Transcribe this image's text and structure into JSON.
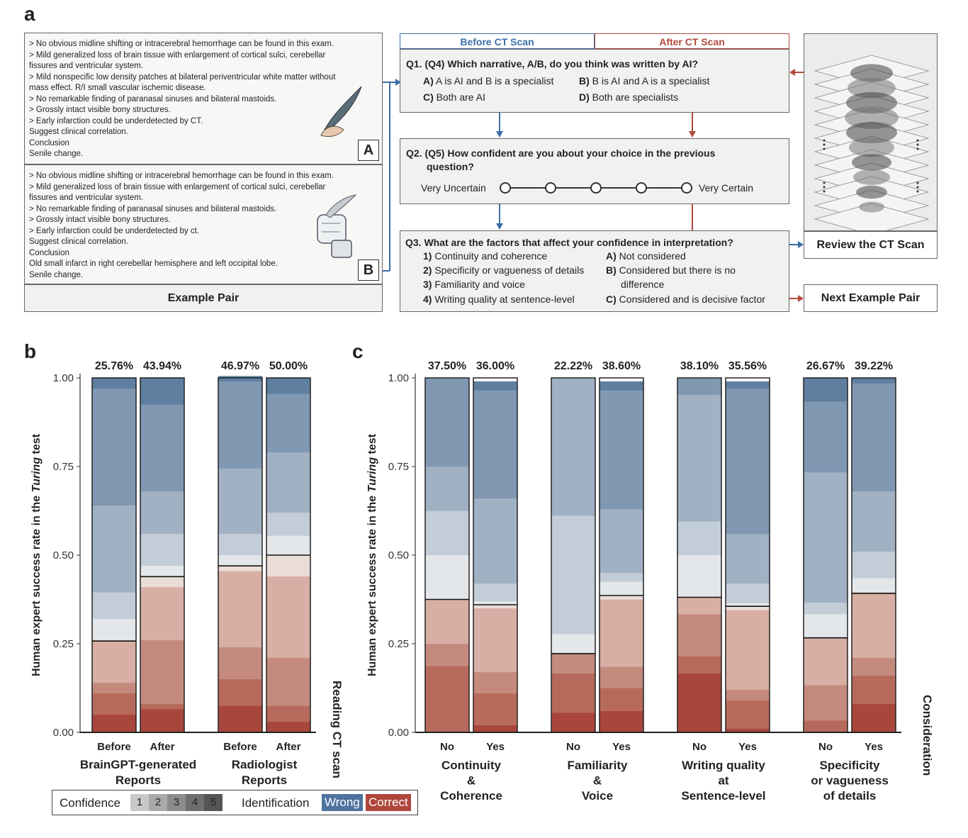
{
  "panel_a": {
    "label": "a",
    "report_a": {
      "lines": [
        "> No obvious midline shifting or intracerebral hemorrhage can be found in this exam.",
        "> Mild generalized loss of brain tissue with enlargement of cortical sulci, cerebellar",
        "fissures and ventricular system.",
        "> Mild nonspecific low density patches at bilateral periventricular white matter without",
        "mass effect. R/I small vascular ischemic disease.",
        "> No remarkable finding of paranasal sinuses and bilateral mastoids.",
        "> Grossly intact visible bony structures.",
        "> Early infarction could be underdetected by CT.",
        "Suggest clinical correlation.",
        "Conclusion",
        "Senile change."
      ],
      "tag": "A"
    },
    "report_b": {
      "lines": [
        "> No obvious midline shifting or intracerebral hemorrhage can be found in this exam.",
        "> Mild generalized loss of brain tissue with enlargement of cortical sulci, cerebellar",
        "fissures and ventricular system.",
        "> No remarkable finding of paranasal sinuses and bilateral mastoids.",
        "> Grossly intact visible bony structures.",
        "> Early infarction could be underdetected by ct.",
        "Suggest clinical correlation.",
        "Conclusion",
        "Old small infarct in right cerebellar hemisphere and left occipital lobe.",
        "Senile change."
      ],
      "tag": "B"
    },
    "example_pair_label": "Example Pair",
    "tab_before": "Before CT Scan",
    "tab_after": "After CT Scan",
    "q1": {
      "title": "Q1. (Q4) Which narrative, A/B, do you think was written by AI?",
      "opt_a_key": "A)",
      "opt_a": "A is AI and B is a specialist",
      "opt_b_key": "B)",
      "opt_b": "B is AI and A is a specialist",
      "opt_c_key": "C)",
      "opt_c": "Both are AI",
      "opt_d_key": "D)",
      "opt_d": "Both are specialists"
    },
    "q2": {
      "title_1": "Q2. (Q5) How confident are you about your choice in the previous",
      "title_2": "question?",
      "left": "Very Uncertain",
      "right": "Very Certain"
    },
    "q3": {
      "title": "Q3. What are the factors that affect your confidence in interpretation?",
      "f1_key": "1)",
      "f1": "Continuity and coherence",
      "f2_key": "2)",
      "f2": "Specificity or vagueness of details",
      "f3_key": "3)",
      "f3": "Familiarity and voice",
      "f4_key": "4)",
      "f4": "Writing quality at sentence-level",
      "ca_key": "A)",
      "ca": "Not considered",
      "cb_key": "B)",
      "cb": "Considered but there is no",
      "cb2": "difference",
      "cc_key": "C)",
      "cc": "Considered and is decisive factor"
    },
    "review_label": "Review the CT Scan",
    "next_label": "Next Example Pair"
  },
  "colors": {
    "wrong": "#4e72a0",
    "correct": "#b0453b",
    "before_tab": "#3c6ea8",
    "after_tab": "#b24a3d"
  },
  "panel_b": {
    "label": "b",
    "side_label": "Reading CT scan"
  },
  "panel_c": {
    "label": "c",
    "side_label": "Consideration"
  },
  "legend": {
    "confidence_label": "Confidence",
    "levels": [
      "1",
      "2",
      "3",
      "4",
      "5"
    ],
    "identification_label": "Identification",
    "wrong_label": "Wrong",
    "correct_label": "Correct"
  },
  "chart_data": [
    {
      "type": "stacked-bar",
      "panel": "b",
      "title": "",
      "ylabel": "Human expert success rate in the Turing test",
      "ylim": [
        0,
        1
      ],
      "yticks": [
        "0.00",
        "0.25",
        "0.50",
        "0.75",
        "1.00"
      ],
      "stack_order": "Correct conf 5 (bottom) ... Correct conf 1, Wrong conf 1 ... Wrong conf 5 (top)",
      "groups": [
        {
          "name": "BrainGPT-generated Reports",
          "bars": [
            {
              "label": "Before",
              "success_label": "25.76%",
              "success": 0.2576,
              "correct": [
                0.0,
                0.12,
                0.03,
                0.06,
                0.05
              ],
              "wrong": [
                0.06,
                0.075,
                0.245,
                0.33,
                0.03
              ]
            },
            {
              "label": "After",
              "success_label": "43.94%",
              "success": 0.4394,
              "correct": [
                0.03,
                0.15,
                0.18,
                0.015,
                0.065
              ],
              "wrong": [
                0.03,
                0.09,
                0.12,
                0.245,
                0.075
              ]
            }
          ]
        },
        {
          "name": "Radiologist Reports",
          "bars": [
            {
              "label": "Before",
              "success_label": "46.97%",
              "success": 0.4697,
              "correct": [
                0.015,
                0.215,
                0.09,
                0.075,
                0.075
              ],
              "wrong": [
                0.03,
                0.06,
                0.185,
                0.245,
                0.015
              ]
            },
            {
              "label": "After",
              "success_label": "50.00%",
              "success": 0.5,
              "correct": [
                0.06,
                0.23,
                0.135,
                0.045,
                0.03
              ],
              "wrong": [
                0.055,
                0.065,
                0.17,
                0.165,
                0.045
              ]
            }
          ]
        }
      ]
    },
    {
      "type": "stacked-bar",
      "panel": "c",
      "title": "",
      "ylabel": "Human expert success rate in the Turing test",
      "ylim": [
        0,
        1
      ],
      "yticks": [
        "0.00",
        "0.25",
        "0.50",
        "0.75",
        "1.00"
      ],
      "groups": [
        {
          "name": "Continuity & Coherence",
          "bars": [
            {
              "label": "No",
              "success_label": "37.50%",
              "success": 0.375,
              "correct": [
                0.0,
                0.125,
                0.0625,
                0.1875,
                0.0
              ],
              "wrong": [
                0.125,
                0.125,
                0.125,
                0.25,
                0.0
              ]
            },
            {
              "label": "Yes",
              "success_label": "36.00%",
              "success": 0.36,
              "correct": [
                0.01,
                0.18,
                0.06,
                0.09,
                0.02
              ],
              "wrong": [
                0.01,
                0.05,
                0.24,
                0.305,
                0.025
              ]
            }
          ]
        },
        {
          "name": "Familiarity & Voice",
          "bars": [
            {
              "label": "No",
              "success_label": "22.22%",
              "success": 0.2222,
              "correct": [
                0.0,
                0.0,
                0.0556,
                0.1111,
                0.0556
              ],
              "wrong": [
                0.0556,
                0.3333,
                0.3889,
                0.0,
                0.0
              ]
            },
            {
              "label": "Yes",
              "success_label": "38.60%",
              "success": 0.386,
              "correct": [
                0.01,
                0.19,
                0.06,
                0.065,
                0.06
              ],
              "wrong": [
                0.04,
                0.025,
                0.18,
                0.335,
                0.025
              ]
            }
          ]
        },
        {
          "name": "Writing quality at Sentence-level",
          "bars": [
            {
              "label": "No",
              "success_label": "38.10%",
              "success": 0.381,
              "correct": [
                0.0,
                0.0476,
                0.119,
                0.0476,
                0.1667
              ],
              "wrong": [
                0.119,
                0.0952,
                0.3571,
                0.0476,
                0.0
              ]
            },
            {
              "label": "Yes",
              "success_label": "35.56%",
              "success": 0.3556,
              "correct": [
                0.01,
                0.225,
                0.03,
                0.08,
                0.01
              ],
              "wrong": [
                0.01,
                0.055,
                0.14,
                0.41,
                0.02
              ]
            }
          ]
        },
        {
          "name": "Specificity or vagueness of details",
          "bars": [
            {
              "label": "No",
              "success_label": "26.67%",
              "success": 0.2667,
              "correct": [
                0.0,
                0.1333,
                0.1,
                0.0333,
                0.0
              ],
              "wrong": [
                0.0667,
                0.0333,
                0.3667,
                0.2,
                0.0667
              ]
            },
            {
              "label": "Yes",
              "success_label": "39.22%",
              "success": 0.3922,
              "correct": [
                0.0,
                0.185,
                0.05,
                0.08,
                0.08
              ],
              "wrong": [
                0.04,
                0.075,
                0.17,
                0.305,
                0.015
              ]
            }
          ]
        }
      ]
    }
  ]
}
